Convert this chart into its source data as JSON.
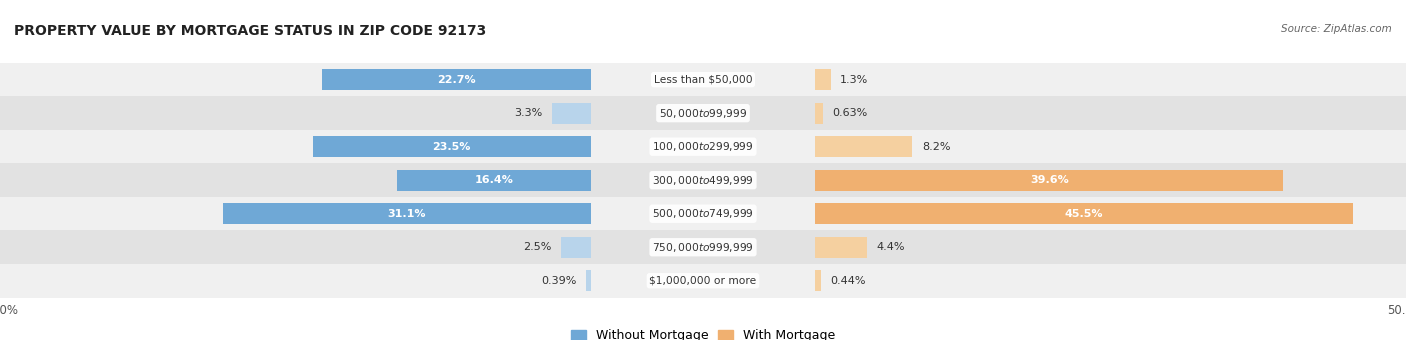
{
  "title": "PROPERTY VALUE BY MORTGAGE STATUS IN ZIP CODE 92173",
  "source": "Source: ZipAtlas.com",
  "categories": [
    "Less than $50,000",
    "$50,000 to $99,999",
    "$100,000 to $299,999",
    "$300,000 to $499,999",
    "$500,000 to $749,999",
    "$750,000 to $999,999",
    "$1,000,000 or more"
  ],
  "without_mortgage": [
    22.7,
    3.3,
    23.5,
    16.4,
    31.1,
    2.5,
    0.39
  ],
  "with_mortgage": [
    1.3,
    0.63,
    8.2,
    39.6,
    45.5,
    4.4,
    0.44
  ],
  "without_mortgage_labels": [
    "22.7%",
    "3.3%",
    "23.5%",
    "16.4%",
    "31.1%",
    "2.5%",
    "0.39%"
  ],
  "with_mortgage_labels": [
    "1.3%",
    "0.63%",
    "8.2%",
    "39.6%",
    "45.5%",
    "4.4%",
    "0.44%"
  ],
  "blue_dark": "#6fa8d6",
  "blue_light": "#b8d4eb",
  "orange_dark": "#f0b070",
  "orange_light": "#f5d0a0",
  "row_bg_even": "#f0f0f0",
  "row_bg_odd": "#e2e2e2",
  "xlim": 50.0,
  "title_fontsize": 10,
  "label_fontsize": 8.0,
  "tick_fontsize": 8.5,
  "legend_fontsize": 9,
  "bar_height": 0.62,
  "large_threshold": 15
}
